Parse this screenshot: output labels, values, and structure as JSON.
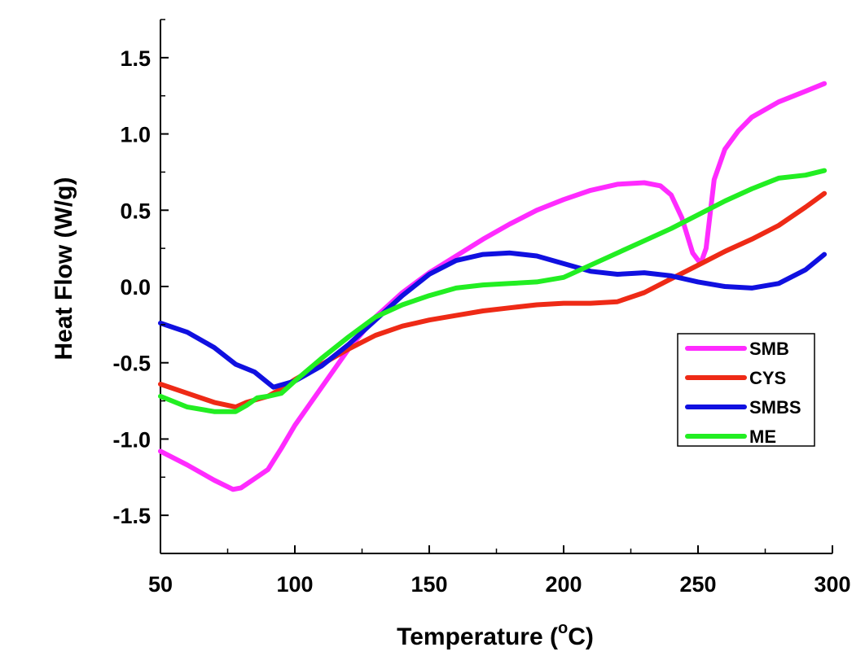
{
  "chart_data": {
    "type": "line",
    "title": "",
    "xlabel": "Temperature (",
    "xlabel_sup": "o",
    "xlabel_end": "C)",
    "ylabel": "Heat Flow (W/g)",
    "xlim": [
      50,
      300
    ],
    "ylim": [
      -1.75,
      1.75
    ],
    "x_ticks": [
      50,
      100,
      150,
      200,
      250,
      300
    ],
    "x_tick_labels": [
      "50",
      "100",
      "150",
      "200",
      "250",
      "300"
    ],
    "y_ticks": [
      -1.5,
      -1.0,
      -0.5,
      0.0,
      0.5,
      1.0,
      1.5
    ],
    "y_tick_labels": [
      "-1.5",
      "-1.0",
      "-0.5",
      "0.0",
      "0.5",
      "1.0",
      "1.5"
    ],
    "grid": false,
    "legend_position": "bottom-right",
    "series": [
      {
        "name": "SMB",
        "color": "#ff2bff",
        "x": [
          50,
          60,
          70,
          77,
          80,
          85,
          90,
          95,
          100,
          110,
          120,
          130,
          140,
          150,
          160,
          170,
          180,
          190,
          200,
          210,
          220,
          230,
          236,
          240,
          244,
          248,
          251,
          253,
          256,
          260,
          265,
          270,
          280,
          290,
          297
        ],
        "y": [
          -1.08,
          -1.17,
          -1.27,
          -1.33,
          -1.32,
          -1.26,
          -1.2,
          -1.06,
          -0.91,
          -0.66,
          -0.41,
          -0.2,
          -0.04,
          0.09,
          0.2,
          0.31,
          0.41,
          0.5,
          0.57,
          0.63,
          0.67,
          0.68,
          0.66,
          0.6,
          0.45,
          0.22,
          0.15,
          0.25,
          0.7,
          0.9,
          1.02,
          1.11,
          1.21,
          1.28,
          1.33
        ]
      },
      {
        "name": "CYS",
        "color": "#ee2a16",
        "x": [
          50,
          60,
          70,
          78,
          82,
          90,
          95,
          100,
          110,
          120,
          130,
          140,
          150,
          160,
          170,
          180,
          190,
          200,
          210,
          220,
          230,
          240,
          250,
          260,
          270,
          280,
          290,
          297
        ],
        "y": [
          -0.64,
          -0.7,
          -0.76,
          -0.79,
          -0.76,
          -0.72,
          -0.67,
          -0.61,
          -0.51,
          -0.41,
          -0.32,
          -0.26,
          -0.22,
          -0.19,
          -0.16,
          -0.14,
          -0.12,
          -0.11,
          -0.11,
          -0.1,
          -0.04,
          0.05,
          0.14,
          0.23,
          0.31,
          0.4,
          0.52,
          0.61
        ]
      },
      {
        "name": "SMBS",
        "color": "#1010e0",
        "x": [
          50,
          60,
          70,
          78,
          85,
          92,
          100,
          110,
          120,
          130,
          140,
          150,
          160,
          170,
          180,
          190,
          200,
          210,
          220,
          230,
          240,
          250,
          260,
          270,
          280,
          290,
          297
        ],
        "y": [
          -0.24,
          -0.3,
          -0.4,
          -0.51,
          -0.56,
          -0.66,
          -0.62,
          -0.52,
          -0.38,
          -0.22,
          -0.06,
          0.08,
          0.17,
          0.21,
          0.22,
          0.2,
          0.15,
          0.1,
          0.08,
          0.09,
          0.07,
          0.03,
          0.0,
          -0.01,
          0.02,
          0.11,
          0.21
        ]
      },
      {
        "name": "ME",
        "color": "#22ee22",
        "x": [
          50,
          60,
          70,
          78,
          82,
          86,
          90,
          95,
          100,
          110,
          120,
          130,
          140,
          150,
          160,
          170,
          180,
          190,
          200,
          210,
          220,
          230,
          240,
          250,
          260,
          270,
          280,
          290,
          297
        ],
        "y": [
          -0.72,
          -0.79,
          -0.82,
          -0.82,
          -0.78,
          -0.73,
          -0.72,
          -0.7,
          -0.62,
          -0.47,
          -0.33,
          -0.2,
          -0.12,
          -0.06,
          -0.01,
          0.01,
          0.02,
          0.03,
          0.06,
          0.14,
          0.22,
          0.3,
          0.38,
          0.47,
          0.56,
          0.64,
          0.71,
          0.73,
          0.76
        ]
      }
    ]
  }
}
